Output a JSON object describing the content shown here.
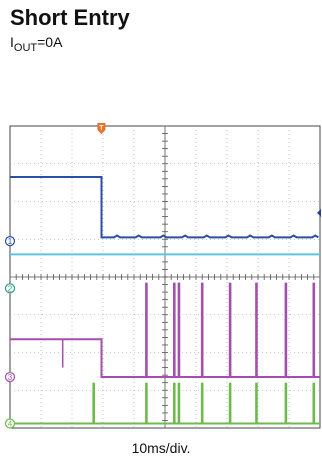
{
  "header": {
    "title": "Short Entry",
    "subtitle_prefix": "I",
    "subtitle_sub": "OUT",
    "subtitle_suffix": "=0A"
  },
  "chart_data": {
    "type": "line",
    "title": "Short Entry",
    "subtitle": "IOUT=0A",
    "xlabel": "10ms/div.",
    "ylabel": "",
    "grid": true,
    "divisions": {
      "x": 10,
      "y": 8
    },
    "xlim": [
      0,
      10
    ],
    "ylim": [
      0,
      8
    ],
    "trigger": {
      "label": "T",
      "x": 2.95,
      "color": "#e8702a"
    },
    "right_marker": {
      "y": 5.7,
      "color": "#2a3f9a"
    },
    "series": [
      {
        "name": "",
        "channel": "1",
        "color": "#2a4fa6",
        "ground": 4.95,
        "points": [
          [
            0,
            6.65
          ],
          [
            2.95,
            6.65
          ],
          [
            2.95,
            5.05
          ],
          [
            10,
            5.05
          ]
        ],
        "ripple": {
          "start": 2.95,
          "amplitude": 0.05
        }
      },
      {
        "name": "",
        "channel": "",
        "color": "#5cc4e0",
        "ground": 4.55,
        "points": [
          [
            0,
            4.6
          ],
          [
            10,
            4.6
          ]
        ]
      },
      {
        "name": "",
        "channel": "2",
        "color": "#2f9a8e",
        "ground": 3.7,
        "points": []
      },
      {
        "name": "",
        "channel": "3",
        "color": "#a44fae",
        "ground": 1.35,
        "points": [
          [
            0,
            2.35
          ],
          [
            2.95,
            2.35
          ],
          [
            2.95,
            1.35
          ],
          [
            10,
            1.35
          ]
        ],
        "glitches": [
          {
            "x": 1.7,
            "top": 2.35,
            "bottom": 1.6
          }
        ],
        "spikes": {
          "top": 3.85,
          "bottom": 1.35,
          "x": [
            4.4,
            5.3,
            5.45,
            6.2,
            7.1,
            7.95,
            8.9,
            9.8
          ]
        }
      },
      {
        "name": "",
        "channel": "4",
        "color": "#6dbb4a",
        "ground": 0.12,
        "points": [
          [
            0,
            0.12
          ],
          [
            10,
            0.12
          ]
        ],
        "spikes": {
          "top": 1.2,
          "bottom": 0.12,
          "x": [
            2.7,
            4.4,
            5.3,
            5.45,
            6.2,
            7.1,
            7.95,
            8.9,
            9.8
          ]
        }
      }
    ]
  }
}
